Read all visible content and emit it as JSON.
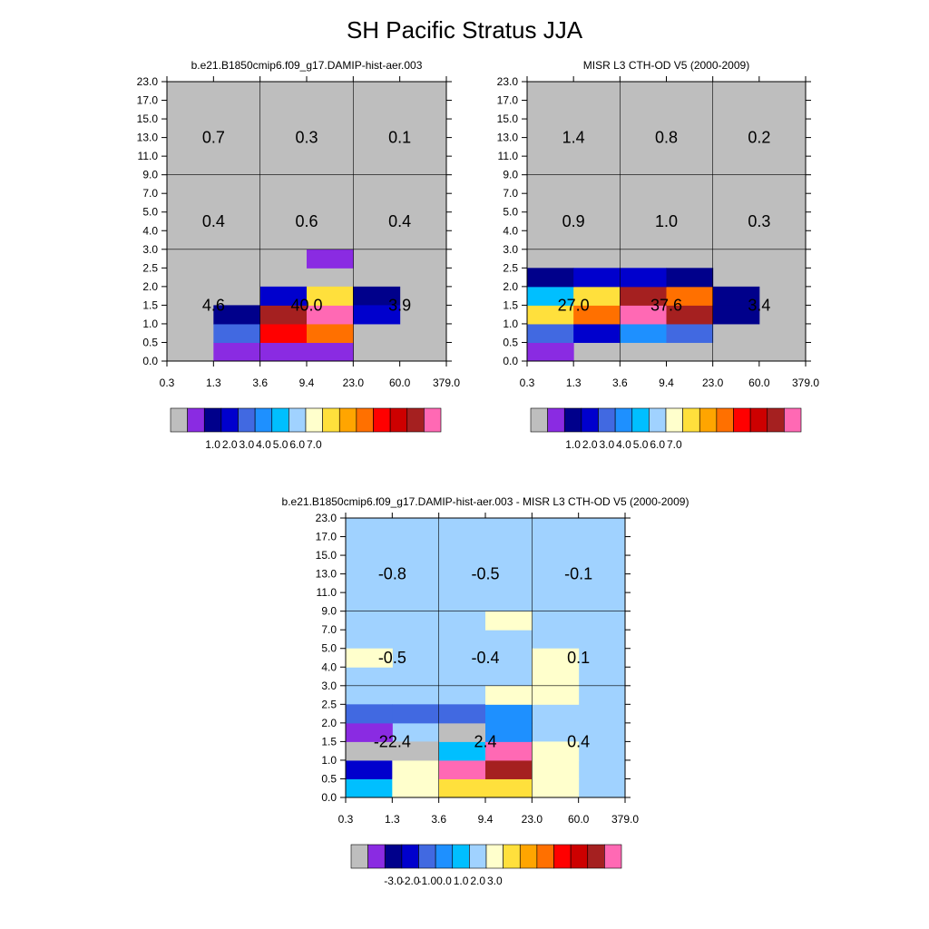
{
  "title": "SH Pacific Stratus JJA",
  "x_tick_labels": [
    "0.3",
    "1.3",
    "3.6",
    "9.4",
    "23.0",
    "60.0",
    "379.0"
  ],
  "y_tick_labels": [
    "0.0",
    "0.5",
    "1.0",
    "1.5",
    "2.0",
    "2.5",
    "3.0",
    "4.0",
    "5.0",
    "7.0",
    "9.0",
    "11.0",
    "13.0",
    "15.0",
    "17.0",
    "23.0"
  ],
  "abs_colormap": [
    "#bebebe",
    "#8a2be2",
    "#00008b",
    "#0000cd",
    "#4169e1",
    "#1e90ff",
    "#00bfff",
    "#a0d2ff",
    "#ffffcc",
    "#ffe03c",
    "#ffa500",
    "#ff7000",
    "#ff0000",
    "#cd0000",
    "#a52020",
    "#ff69b4"
  ],
  "diff_colormap": [
    "#bebebe",
    "#8a2be2",
    "#00008b",
    "#0000cd",
    "#4169e1",
    "#1e90ff",
    "#00bfff",
    "#a0d2ff",
    "#ffffcc",
    "#ffe03c",
    "#ffa500",
    "#ff7000",
    "#ff0000",
    "#cd0000",
    "#a52020",
    "#ff69b4"
  ],
  "colorbar_abs": {
    "labels": [
      "1.0",
      "2.0",
      "3.0",
      "4.0",
      "5.0",
      "6.0",
      "7.0"
    ]
  },
  "colorbar_diff": {
    "labels": [
      "-3.0",
      "-2.0",
      "-1.0",
      "0.0",
      "1.0",
      "2.0",
      "3.0"
    ]
  },
  "chart_data": [
    {
      "type": "heatmap",
      "title": "b.e21.B1850cmip6.f09_g17.DAMIP-hist-aer.003",
      "background_color_index": 0,
      "cells": [
        [
          1,
          0,
          1
        ],
        [
          2,
          0,
          1
        ],
        [
          3,
          0,
          1
        ],
        [
          1,
          1,
          4
        ],
        [
          2,
          1,
          12
        ],
        [
          3,
          1,
          11
        ],
        [
          1,
          2,
          2
        ],
        [
          2,
          2,
          14
        ],
        [
          3,
          2,
          15
        ],
        [
          2,
          3,
          3
        ],
        [
          3,
          3,
          9
        ],
        [
          4,
          3,
          2
        ],
        [
          4,
          2,
          3
        ],
        [
          3,
          5,
          1
        ]
      ],
      "region_labels": [
        {
          "text": "4.6",
          "xi": 1,
          "yi": 3
        },
        {
          "text": "40.0",
          "xi": 3,
          "yi": 3
        },
        {
          "text": "3.9",
          "xi": 5,
          "yi": 3
        },
        {
          "text": "0.4",
          "xi": 1,
          "yi": 7.5
        },
        {
          "text": "0.6",
          "xi": 3,
          "yi": 7.5
        },
        {
          "text": "0.4",
          "xi": 5,
          "yi": 7.5
        },
        {
          "text": "0.7",
          "xi": 1,
          "yi": 12
        },
        {
          "text": "0.3",
          "xi": 3,
          "yi": 12
        },
        {
          "text": "0.1",
          "xi": 5,
          "yi": 12
        }
      ]
    },
    {
      "type": "heatmap",
      "title": "MISR L3 CTH-OD V5 (2000-2009)",
      "background_color_index": 0,
      "cells": [
        [
          0,
          0,
          1
        ],
        [
          0,
          1,
          4
        ],
        [
          1,
          1,
          3
        ],
        [
          2,
          1,
          5
        ],
        [
          3,
          1,
          4
        ],
        [
          0,
          2,
          9
        ],
        [
          1,
          2,
          11
        ],
        [
          2,
          2,
          15
        ],
        [
          3,
          2,
          14
        ],
        [
          0,
          3,
          6
        ],
        [
          1,
          3,
          9
        ],
        [
          2,
          3,
          14
        ],
        [
          3,
          3,
          11
        ],
        [
          0,
          4,
          2
        ],
        [
          1,
          4,
          3
        ],
        [
          2,
          4,
          3
        ],
        [
          3,
          4,
          2
        ],
        [
          4,
          2,
          2
        ],
        [
          4,
          3,
          2
        ]
      ],
      "region_labels": [
        {
          "text": "27.0",
          "xi": 1,
          "yi": 3
        },
        {
          "text": "37.6",
          "xi": 3,
          "yi": 3
        },
        {
          "text": "3.4",
          "xi": 5,
          "yi": 3
        },
        {
          "text": "0.9",
          "xi": 1,
          "yi": 7.5
        },
        {
          "text": "1.0",
          "xi": 3,
          "yi": 7.5
        },
        {
          "text": "0.3",
          "xi": 5,
          "yi": 7.5
        },
        {
          "text": "1.4",
          "xi": 1,
          "yi": 12
        },
        {
          "text": "0.8",
          "xi": 3,
          "yi": 12
        },
        {
          "text": "0.2",
          "xi": 5,
          "yi": 12
        }
      ]
    },
    {
      "type": "heatmap",
      "title": "b.e21.B1850cmip6.f09_g17.DAMIP-hist-aer.003 - MISR L3 CTH-OD V5 (2000-2009)",
      "background_color_index": 7,
      "cells": [
        [
          0,
          0,
          6
        ],
        [
          0,
          1,
          3
        ],
        [
          0,
          2,
          0
        ],
        [
          0,
          3,
          1
        ],
        [
          0,
          4,
          4
        ],
        [
          1,
          0,
          8
        ],
        [
          1,
          1,
          8
        ],
        [
          1,
          2,
          0
        ],
        [
          1,
          4,
          4
        ],
        [
          2,
          0,
          9
        ],
        [
          2,
          1,
          15
        ],
        [
          2,
          2,
          6
        ],
        [
          2,
          3,
          0
        ],
        [
          2,
          4,
          4
        ],
        [
          3,
          0,
          9
        ],
        [
          3,
          1,
          14
        ],
        [
          3,
          2,
          15
        ],
        [
          3,
          3,
          5
        ],
        [
          3,
          4,
          5
        ],
        [
          4,
          0,
          8
        ],
        [
          4,
          1,
          8
        ],
        [
          4,
          2,
          8
        ],
        [
          0,
          7,
          8
        ],
        [
          3,
          5,
          8
        ],
        [
          4,
          5,
          8
        ],
        [
          4,
          6,
          8
        ],
        [
          4,
          7,
          8
        ],
        [
          3,
          9,
          8
        ]
      ],
      "region_labels": [
        {
          "text": "-22.4",
          "xi": 1,
          "yi": 3
        },
        {
          "text": "2.4",
          "xi": 3,
          "yi": 3
        },
        {
          "text": "0.4",
          "xi": 5,
          "yi": 3
        },
        {
          "text": "-0.5",
          "xi": 1,
          "yi": 7.5
        },
        {
          "text": "-0.4",
          "xi": 3,
          "yi": 7.5
        },
        {
          "text": "0.1",
          "xi": 5,
          "yi": 7.5
        },
        {
          "text": "-0.8",
          "xi": 1,
          "yi": 12
        },
        {
          "text": "-0.5",
          "xi": 3,
          "yi": 12
        },
        {
          "text": "-0.1",
          "xi": 5,
          "yi": 12
        }
      ]
    }
  ]
}
